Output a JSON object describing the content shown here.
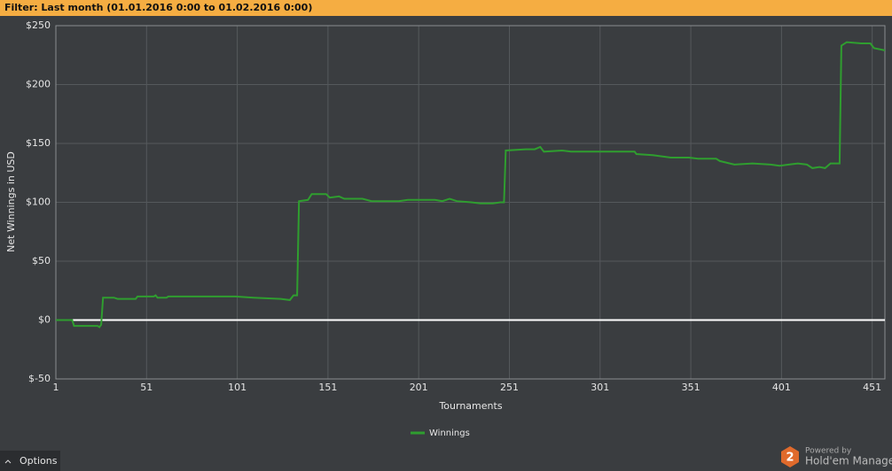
{
  "filter": "Filter: Last month (01.01.2016 0:00 to 01.02.2016 0:00)",
  "chart_data": {
    "type": "line",
    "x_label": "Tournaments",
    "y_label": "Net Winnings in USD",
    "x": [
      1,
      10,
      11,
      24,
      25,
      26,
      27,
      33,
      35,
      45,
      46,
      55,
      56,
      57,
      62,
      63,
      100,
      110,
      125,
      130,
      132,
      134,
      135,
      140,
      142,
      150,
      152,
      157,
      160,
      170,
      175,
      190,
      195,
      210,
      214,
      218,
      222,
      230,
      235,
      242,
      246,
      248,
      249,
      260,
      265,
      268,
      270,
      280,
      285,
      320,
      321,
      330,
      340,
      350,
      355,
      365,
      367,
      375,
      385,
      395,
      400,
      405,
      410,
      415,
      418,
      422,
      425,
      428,
      433,
      434,
      437,
      445,
      450,
      452,
      458
    ],
    "series": [
      {
        "name": "Winnings",
        "color": "#2f9e2f",
        "values": [
          0,
          0,
          -5,
          -5,
          -6,
          -4,
          19,
          19,
          18,
          18,
          20,
          20,
          21,
          19,
          19,
          20,
          20,
          19,
          18,
          17,
          21,
          21,
          101,
          102,
          107,
          107,
          104,
          105,
          103,
          103,
          101,
          101,
          102,
          102,
          101,
          103,
          101,
          100,
          99,
          99,
          100,
          100,
          144,
          145,
          145,
          147,
          143,
          144,
          143,
          143,
          141,
          140,
          138,
          138,
          137,
          137,
          135,
          132,
          133,
          132,
          131,
          132,
          133,
          132,
          129,
          130,
          129,
          133,
          133,
          233,
          236,
          235,
          235,
          231,
          229
        ]
      }
    ],
    "xlim": [
      1,
      458
    ],
    "ylim": [
      -50,
      250
    ],
    "xticks": [
      1,
      51,
      101,
      151,
      201,
      251,
      301,
      351,
      401,
      451
    ],
    "yticks": [
      {
        "value": -50,
        "label": "$-50"
      },
      {
        "value": 0,
        "label": "$0"
      },
      {
        "value": 50,
        "label": "$50"
      },
      {
        "value": 100,
        "label": "$100"
      },
      {
        "value": 150,
        "label": "$150"
      },
      {
        "value": 200,
        "label": "$200"
      },
      {
        "value": 250,
        "label": "$250"
      }
    ],
    "grid": true,
    "legend": "bottom"
  },
  "footer": {
    "options": "Options",
    "powered_by": "Powered by",
    "brand": "Hold'em Manager",
    "logo": "2"
  }
}
